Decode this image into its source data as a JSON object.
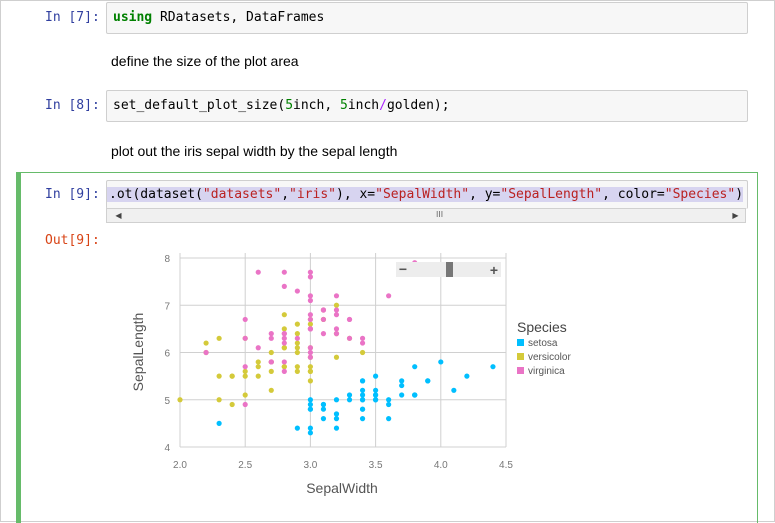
{
  "cells": {
    "c7": {
      "prompt": "In [7]:",
      "kw": "using",
      "rest": " RDatasets, DataFrames"
    },
    "md1": "define the size of the plot area",
    "c8": {
      "prompt": "In [8]:",
      "p1": "set_default_plot_size(",
      "n1": "5",
      "p2": "inch, ",
      "n2": "5",
      "p3": "inch",
      "op": "/",
      "p4": "golden);"
    },
    "md2": "plot out the iris sepal width by the sepal length",
    "c9": {
      "prompt": "In [9]:",
      "p1": ".ot(dataset(",
      "s1": "\"datasets\"",
      "p2": ",",
      "s2": "\"iris\"",
      "p3": "), x=",
      "s3": "\"SepalWidth\"",
      "p4": ", y=",
      "s4": "\"SepalLength\"",
      "p5": ", color=",
      "s5": "\"Species\"",
      "p6": ")"
    },
    "out9": "Out[9]:"
  },
  "colors": {
    "setosa": "#00bfff",
    "versicolor": "#d4ca3a",
    "virginica": "#ea74c6"
  },
  "chart_data": {
    "type": "scatter",
    "title": "",
    "xlabel": "SepalWidth",
    "ylabel": "SepalLength",
    "xlim": [
      2.0,
      4.5
    ],
    "ylim": [
      4,
      8
    ],
    "xticks": [
      "2.0",
      "2.5",
      "3.0",
      "3.5",
      "4.0",
      "4.5"
    ],
    "yticks": [
      "4",
      "5",
      "6",
      "7",
      "8"
    ],
    "grid": true,
    "legend": {
      "title": "Species",
      "placement": "right"
    },
    "series": [
      {
        "name": "setosa",
        "color": "#00bfff",
        "points": [
          [
            3.5,
            5.1
          ],
          [
            3.0,
            4.9
          ],
          [
            3.2,
            4.7
          ],
          [
            3.1,
            4.6
          ],
          [
            3.6,
            5.0
          ],
          [
            3.9,
            5.4
          ],
          [
            3.4,
            4.6
          ],
          [
            3.4,
            5.0
          ],
          [
            2.9,
            4.4
          ],
          [
            3.1,
            4.9
          ],
          [
            3.7,
            5.4
          ],
          [
            3.4,
            4.8
          ],
          [
            3.0,
            4.8
          ],
          [
            3.0,
            4.3
          ],
          [
            4.0,
            5.8
          ],
          [
            4.4,
            5.7
          ],
          [
            3.9,
            5.4
          ],
          [
            3.5,
            5.1
          ],
          [
            3.8,
            5.7
          ],
          [
            3.8,
            5.1
          ],
          [
            3.4,
            5.4
          ],
          [
            3.7,
            5.1
          ],
          [
            3.6,
            4.6
          ],
          [
            3.3,
            5.1
          ],
          [
            3.4,
            4.8
          ],
          [
            3.0,
            5.0
          ],
          [
            3.4,
            5.0
          ],
          [
            3.5,
            5.2
          ],
          [
            3.4,
            5.2
          ],
          [
            3.2,
            4.7
          ],
          [
            3.1,
            4.8
          ],
          [
            3.4,
            5.4
          ],
          [
            4.1,
            5.2
          ],
          [
            4.2,
            5.5
          ],
          [
            3.1,
            4.9
          ],
          [
            3.2,
            5.0
          ],
          [
            3.5,
            5.5
          ],
          [
            3.6,
            4.9
          ],
          [
            3.0,
            4.4
          ],
          [
            3.4,
            5.1
          ],
          [
            3.5,
            5.0
          ],
          [
            2.3,
            4.5
          ],
          [
            3.2,
            4.4
          ],
          [
            3.5,
            5.0
          ],
          [
            3.8,
            5.1
          ],
          [
            3.0,
            4.8
          ],
          [
            3.8,
            5.1
          ],
          [
            3.2,
            4.6
          ],
          [
            3.7,
            5.3
          ],
          [
            3.3,
            5.0
          ]
        ]
      },
      {
        "name": "versicolor",
        "color": "#d4ca3a",
        "points": [
          [
            3.2,
            7.0
          ],
          [
            3.2,
            6.4
          ],
          [
            3.1,
            6.9
          ],
          [
            2.3,
            5.5
          ],
          [
            2.8,
            6.5
          ],
          [
            2.8,
            5.7
          ],
          [
            3.3,
            6.3
          ],
          [
            2.4,
            4.9
          ],
          [
            2.9,
            6.6
          ],
          [
            2.7,
            5.2
          ],
          [
            2.0,
            5.0
          ],
          [
            3.0,
            5.9
          ],
          [
            2.2,
            6.0
          ],
          [
            2.9,
            6.1
          ],
          [
            2.9,
            5.6
          ],
          [
            3.1,
            6.7
          ],
          [
            3.0,
            5.6
          ],
          [
            2.7,
            5.8
          ],
          [
            2.2,
            6.2
          ],
          [
            2.5,
            5.6
          ],
          [
            3.2,
            5.9
          ],
          [
            2.8,
            6.1
          ],
          [
            2.5,
            6.3
          ],
          [
            2.8,
            6.1
          ],
          [
            2.9,
            6.4
          ],
          [
            3.0,
            6.6
          ],
          [
            2.8,
            6.8
          ],
          [
            3.0,
            6.7
          ],
          [
            2.9,
            6.0
          ],
          [
            2.6,
            5.7
          ],
          [
            2.4,
            5.5
          ],
          [
            2.4,
            5.5
          ],
          [
            2.7,
            5.8
          ],
          [
            2.7,
            6.0
          ],
          [
            3.0,
            5.4
          ],
          [
            3.4,
            6.0
          ],
          [
            3.1,
            6.7
          ],
          [
            2.3,
            6.3
          ],
          [
            3.0,
            5.6
          ],
          [
            2.5,
            5.5
          ],
          [
            2.6,
            5.5
          ],
          [
            3.0,
            6.1
          ],
          [
            2.6,
            5.8
          ],
          [
            2.3,
            5.0
          ],
          [
            2.7,
            5.6
          ],
          [
            3.0,
            5.7
          ],
          [
            2.9,
            5.7
          ],
          [
            2.9,
            6.2
          ],
          [
            2.5,
            5.1
          ],
          [
            2.8,
            5.7
          ]
        ]
      },
      {
        "name": "virginica",
        "color": "#ea74c6",
        "points": [
          [
            3.3,
            6.3
          ],
          [
            2.7,
            5.8
          ],
          [
            3.0,
            7.1
          ],
          [
            2.9,
            6.3
          ],
          [
            3.0,
            6.5
          ],
          [
            3.0,
            7.6
          ],
          [
            2.5,
            4.9
          ],
          [
            2.9,
            7.3
          ],
          [
            2.5,
            6.7
          ],
          [
            3.6,
            7.2
          ],
          [
            3.2,
            6.5
          ],
          [
            2.7,
            6.4
          ],
          [
            3.0,
            6.8
          ],
          [
            2.5,
            5.7
          ],
          [
            2.8,
            5.8
          ],
          [
            3.2,
            6.4
          ],
          [
            3.0,
            6.5
          ],
          [
            3.8,
            7.7
          ],
          [
            2.6,
            7.7
          ],
          [
            2.2,
            6.0
          ],
          [
            3.2,
            6.9
          ],
          [
            2.8,
            5.6
          ],
          [
            2.8,
            7.7
          ],
          [
            2.7,
            6.3
          ],
          [
            3.3,
            6.7
          ],
          [
            3.2,
            7.2
          ],
          [
            2.8,
            6.2
          ],
          [
            3.0,
            6.1
          ],
          [
            2.8,
            6.4
          ],
          [
            3.0,
            7.2
          ],
          [
            2.8,
            7.4
          ],
          [
            3.8,
            7.9
          ],
          [
            2.8,
            6.4
          ],
          [
            2.8,
            6.3
          ],
          [
            2.6,
            6.1
          ],
          [
            3.0,
            7.7
          ],
          [
            3.4,
            6.3
          ],
          [
            3.1,
            6.4
          ],
          [
            3.0,
            6.0
          ],
          [
            3.1,
            6.9
          ],
          [
            3.1,
            6.7
          ],
          [
            3.1,
            6.9
          ],
          [
            2.7,
            5.8
          ],
          [
            3.2,
            6.8
          ],
          [
            3.3,
            6.7
          ],
          [
            3.0,
            6.7
          ],
          [
            2.5,
            6.3
          ],
          [
            3.0,
            6.5
          ],
          [
            3.4,
            6.2
          ],
          [
            3.0,
            5.9
          ]
        ]
      }
    ]
  },
  "plot_toolbar": {
    "minus": "−",
    "plus": "+"
  },
  "scrollbar": {
    "left": "◀",
    "right": "▶",
    "grip": "III"
  }
}
